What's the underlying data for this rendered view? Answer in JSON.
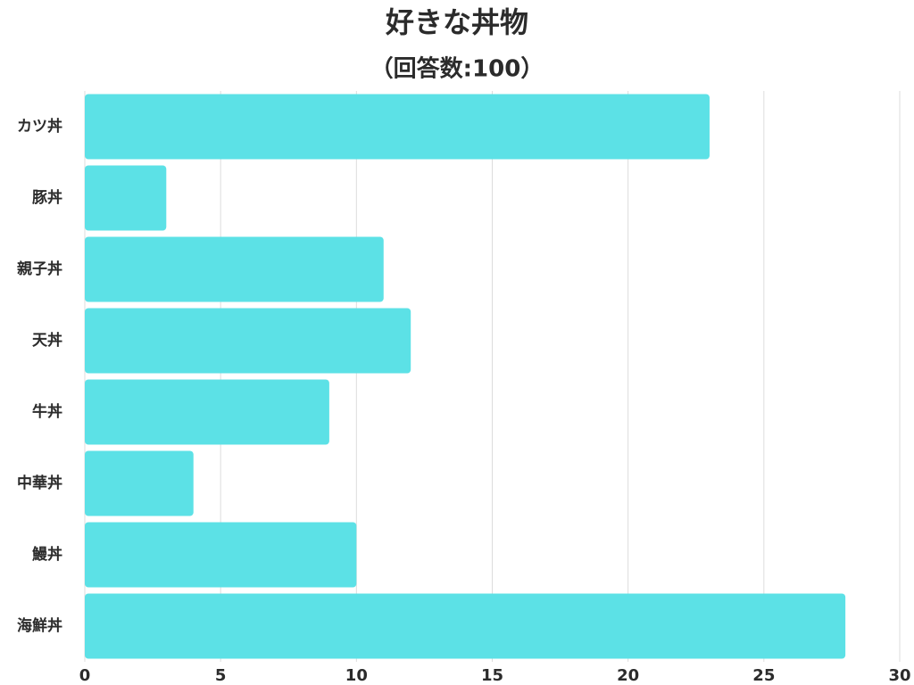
{
  "chart_data": {
    "type": "barh",
    "title": "好きな丼物",
    "subtitle": "（回答数:100）",
    "categories": [
      "カツ丼",
      "豚丼",
      "親子丼",
      "天丼",
      "牛丼",
      "中華丼",
      "鰻丼",
      "海鮮丼"
    ],
    "values": [
      23,
      3,
      11,
      12,
      9,
      4,
      10,
      28
    ],
    "color": "#5ce1e6",
    "xlim": [
      0,
      30
    ],
    "xticks": [
      0,
      5,
      10,
      15,
      20,
      25,
      30
    ],
    "grid": true
  }
}
